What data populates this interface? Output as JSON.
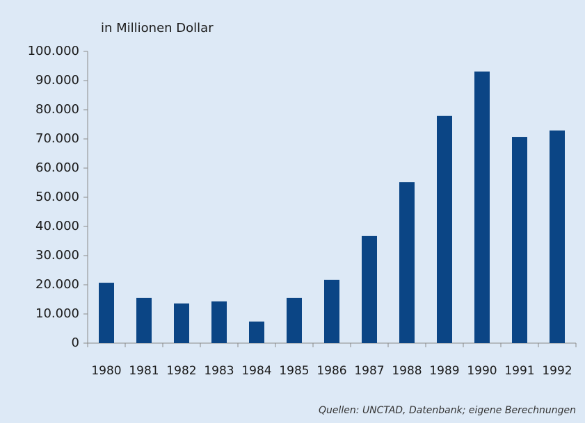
{
  "chart_data": {
    "type": "bar",
    "title": "in Millionen Dollar",
    "source": "Quellen: UNCTAD, Datenbank; eigene Berechnungen",
    "categories": [
      "1980",
      "1981",
      "1982",
      "1983",
      "1984",
      "1985",
      "1986",
      "1987",
      "1988",
      "1989",
      "1990",
      "1991",
      "1992"
    ],
    "values": [
      20700,
      15500,
      13600,
      14300,
      7400,
      15500,
      21700,
      36700,
      55200,
      77900,
      93100,
      70700,
      72900
    ],
    "color": "#0b4585",
    "ylim": [
      0,
      100000
    ],
    "yticks": [
      0,
      {
        "value": 10000,
        "label": "10.000"
      },
      {
        "value": 20000,
        "label": "20.000"
      },
      {
        "value": 30000,
        "label": "30.000"
      },
      {
        "value": 40000,
        "label": "40.000"
      },
      {
        "value": 50000,
        "label": "50.000"
      },
      {
        "value": 60000,
        "label": "60.000"
      },
      {
        "value": 70000,
        "label": "70.000"
      },
      {
        "value": 80000,
        "label": "80.000"
      },
      {
        "value": 90000,
        "label": "90.000"
      },
      {
        "value": 100000,
        "label": "100.000"
      }
    ],
    "grid": false
  }
}
